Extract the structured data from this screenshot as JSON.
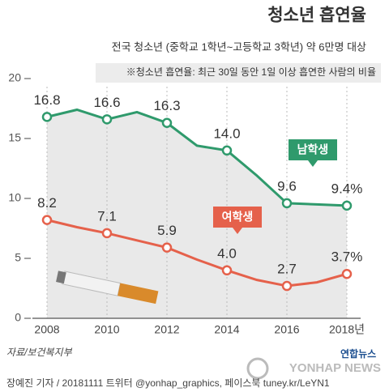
{
  "chart_data": {
    "type": "line",
    "title": "청소년 흡연율",
    "subtitle": "전국 청소년 (중학교 1학년~고등학교 3학년) 약 6만명 대상",
    "note": "※청소년 흡연율: 최근 30일 동안 1일 이상 흡연한 사람의 비율",
    "source": "자료/보건복지부",
    "footer": "장예진 기자 / 20181111 트위터 @yonhap_graphics, 페이스북 tuney.kr/LeYN1",
    "logo": "연합뉴스",
    "logo_en": "YONHAP NEWS",
    "x": [
      2008,
      2009,
      2010,
      2011,
      2012,
      2013,
      2014,
      2015,
      2016,
      2017,
      2018
    ],
    "xlim": [
      2008,
      2018
    ],
    "xticks": [
      2008,
      2010,
      2012,
      2014,
      2016,
      {
        "value": 2018,
        "label": "2018년"
      }
    ],
    "ylim": [
      0,
      20
    ],
    "yticks": [
      0,
      5,
      10,
      15,
      20
    ],
    "series": [
      {
        "name": "남학생",
        "color": "#2f9a6c",
        "values": [
          16.8,
          17.4,
          16.6,
          17.2,
          16.3,
          14.4,
          14.0,
          11.9,
          9.6,
          9.5,
          9.4
        ],
        "value_labels": [
          "16.8",
          null,
          "16.6",
          null,
          "16.3",
          null,
          "14.0",
          null,
          "9.6",
          null,
          "9.4%"
        ]
      },
      {
        "name": "여학생",
        "color": "#e5614b",
        "values": [
          8.2,
          7.6,
          7.1,
          6.5,
          5.9,
          4.9,
          4.0,
          3.2,
          2.7,
          3.0,
          3.7
        ],
        "value_labels": [
          "8.2",
          null,
          "7.1",
          null,
          "5.9",
          null,
          "4.0",
          null,
          "2.7",
          null,
          "3.7%"
        ]
      }
    ]
  }
}
